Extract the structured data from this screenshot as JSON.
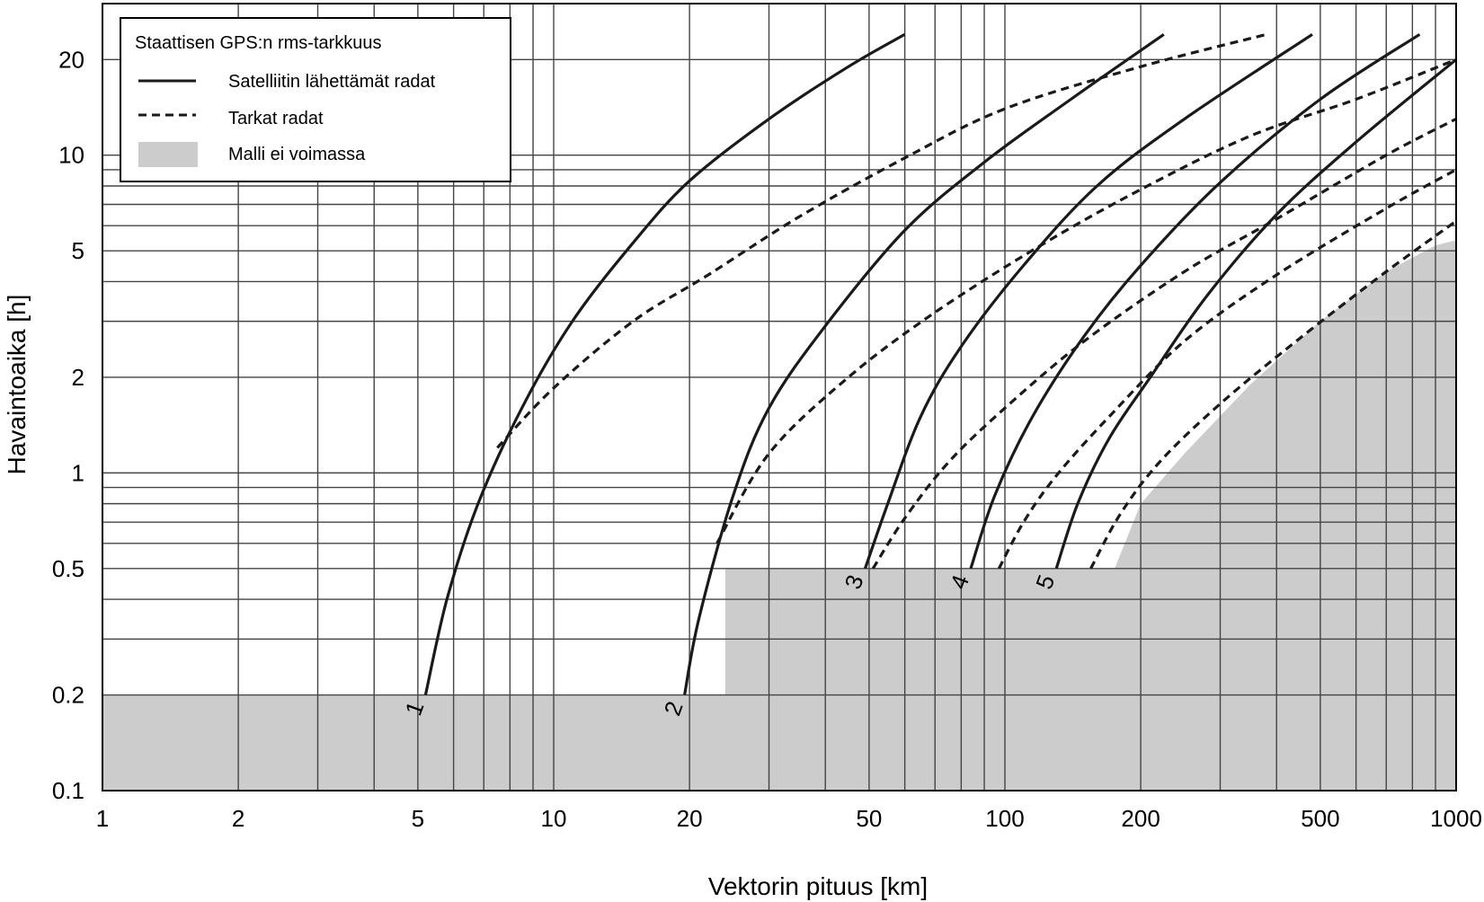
{
  "chart_data": {
    "type": "line",
    "xscale": "log",
    "yscale": "log",
    "xlim": [
      1,
      1000
    ],
    "ylim": [
      0.1,
      30
    ],
    "xlabel": "Vektorin pituus [km]",
    "ylabel": "Havaintoaika [h]",
    "x_ticks": [
      1,
      2,
      5,
      10,
      20,
      50,
      100,
      200,
      500,
      1000
    ],
    "x_tick_labels": [
      "1",
      "2",
      "5",
      "10",
      "20",
      "50",
      "100",
      "200",
      "500",
      "1000"
    ],
    "y_ticks": [
      0.1,
      0.2,
      0.5,
      1,
      2,
      5,
      10,
      20
    ],
    "y_tick_labels": [
      "0.1",
      "0.2",
      "0.5",
      "1",
      "2",
      "5",
      "10",
      "20"
    ],
    "grid": true,
    "legend": {
      "title": "Staattisen GPS:n rms-tarkkuus",
      "placement": "top-left",
      "entries": [
        {
          "label": "Satelliitin lähettämät radat",
          "style": "solid"
        },
        {
          "label": "Tarkat radat",
          "style": "dashed"
        },
        {
          "label": "Malli ei voimassa",
          "style": "area",
          "color": "#cccccc"
        }
      ]
    },
    "colors": {
      "curve": "#1a1a1a",
      "grid": "#444444",
      "invalid_area": "#cccccc"
    },
    "series": [
      {
        "label": "1",
        "style": "solid",
        "x": [
          5.2,
          5.8,
          6.8,
          8.5,
          11,
          15,
          20,
          30,
          45,
          60
        ],
        "y": [
          0.2,
          0.4,
          0.8,
          1.6,
          3,
          5.3,
          8.3,
          13,
          19,
          24
        ]
      },
      {
        "label": "1",
        "style": "dashed",
        "x": [
          7.5,
          10,
          15,
          22,
          35,
          60,
          100,
          200,
          380
        ],
        "y": [
          1.2,
          1.85,
          3.0,
          4.2,
          6.4,
          9.8,
          14,
          19,
          24
        ]
      },
      {
        "label": "2",
        "style": "solid",
        "x": [
          19.5,
          21,
          25,
          30,
          40,
          60,
          90,
          140,
          225
        ],
        "y": [
          0.2,
          0.35,
          0.85,
          1.6,
          2.9,
          5.8,
          9.5,
          15,
          24
        ]
      },
      {
        "label": "2",
        "style": "dashed",
        "x": [
          23,
          30,
          45,
          70,
          120,
          200,
          350,
          600,
          1000
        ],
        "y": [
          0.6,
          1.15,
          2.0,
          3.2,
          5.2,
          7.8,
          11.5,
          15,
          20
        ]
      },
      {
        "label": "3",
        "style": "solid",
        "x": [
          49,
          55,
          65,
          80,
          110,
          160,
          250,
          480
        ],
        "y": [
          0.5,
          0.8,
          1.5,
          2.5,
          4.5,
          8,
          13,
          24
        ]
      },
      {
        "label": "3",
        "style": "dashed",
        "x": [
          51,
          60,
          75,
          100,
          150,
          250,
          400,
          700,
          1000
        ],
        "y": [
          0.5,
          0.72,
          1.08,
          1.6,
          2.6,
          4.3,
          6.3,
          10,
          13
        ]
      },
      {
        "label": "4",
        "style": "solid",
        "x": [
          84,
          95,
          115,
          150,
          200,
          300,
          500,
          830
        ],
        "y": [
          0.5,
          0.85,
          1.5,
          2.7,
          4.5,
          8.2,
          15,
          24
        ]
      },
      {
        "label": "4",
        "style": "dashed",
        "x": [
          97,
          110,
          130,
          170,
          250,
          400,
          700,
          1000
        ],
        "y": [
          0.5,
          0.7,
          0.98,
          1.5,
          2.6,
          4.2,
          6.8,
          9
        ]
      },
      {
        "label": "5",
        "style": "solid",
        "x": [
          130,
          145,
          170,
          210,
          280,
          400,
          600,
          1000
        ],
        "y": [
          0.5,
          0.8,
          1.28,
          2.0,
          3.6,
          6.5,
          11,
          20
        ]
      },
      {
        "label": "5",
        "style": "dashed",
        "x": [
          155,
          180,
          220,
          300,
          450,
          700,
          1000
        ],
        "y": [
          0.5,
          0.74,
          1.08,
          1.65,
          2.65,
          4.3,
          6.2
        ]
      }
    ],
    "invalid_region": {
      "boundary_x": [
        1,
        24,
        24,
        175,
        200,
        250,
        350,
        500,
        700,
        900,
        1000
      ],
      "boundary_y": [
        0.2,
        0.2,
        0.5,
        0.5,
        0.8,
        1.15,
        1.9,
        3.0,
        4.3,
        5.2,
        5.4
      ]
    }
  }
}
